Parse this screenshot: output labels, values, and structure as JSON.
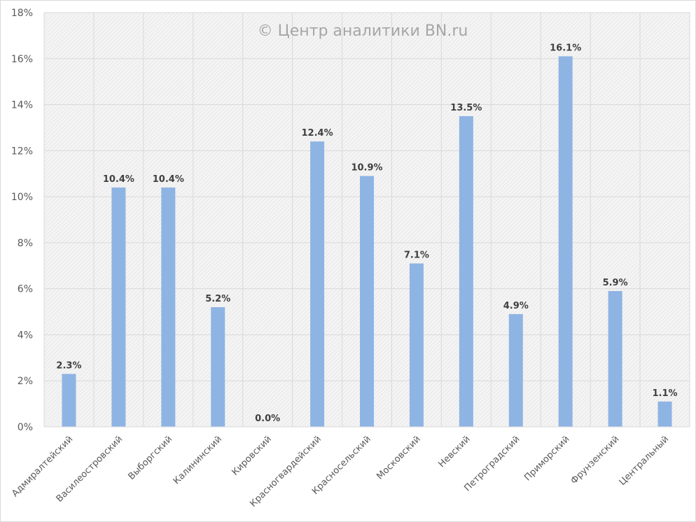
{
  "chart_data": {
    "type": "bar",
    "title": "",
    "watermark": "© Центр аналитики BN.ru",
    "xlabel": "",
    "ylabel": "",
    "categories": [
      "Адмиралтейский",
      "Василеостровский",
      "Выборгский",
      "Калининский",
      "Кировский",
      "Красногвардейский",
      "Красносельский",
      "Московский",
      "Невский",
      "Петроградский",
      "Приморский",
      "Фрунзенский",
      "Центральный"
    ],
    "values": [
      2.3,
      10.4,
      10.4,
      5.2,
      0.0,
      12.4,
      10.9,
      7.1,
      13.5,
      4.9,
      16.1,
      5.9,
      1.1
    ],
    "data_labels": [
      "2.3%",
      "10.4%",
      "10.4%",
      "5.2%",
      "0.0%",
      "12.4%",
      "10.9%",
      "7.1%",
      "13.5%",
      "4.9%",
      "16.1%",
      "5.9%",
      "1.1%"
    ],
    "ylim": [
      0,
      18
    ],
    "yticks": [
      0,
      2,
      4,
      6,
      8,
      10,
      12,
      14,
      16,
      18
    ],
    "ytick_labels": [
      "0%",
      "2%",
      "4%",
      "6%",
      "8%",
      "10%",
      "12%",
      "14%",
      "16%",
      "18%"
    ],
    "grid": true,
    "bar_color": "#8eb4e3",
    "legend": "none"
  }
}
